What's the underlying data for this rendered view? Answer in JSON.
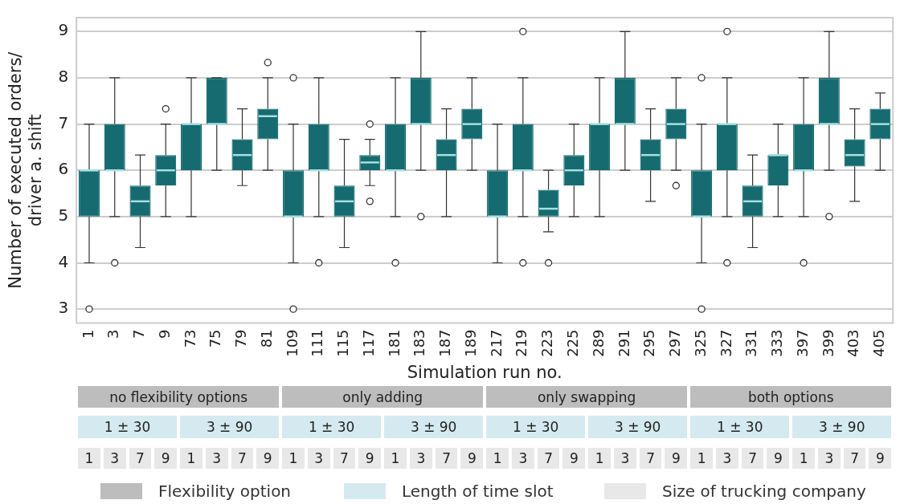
{
  "chart_data": {
    "type": "box",
    "xlabel": "Simulation run no.",
    "ylabel": "Number of executed orders/\ndriver a. shift",
    "categories": [
      "1",
      "3",
      "7",
      "9",
      "73",
      "75",
      "79",
      "81",
      "109",
      "111",
      "115",
      "117",
      "181",
      "183",
      "187",
      "189",
      "217",
      "219",
      "223",
      "225",
      "289",
      "291",
      "295",
      "297",
      "325",
      "327",
      "331",
      "333",
      "397",
      "399",
      "403",
      "405"
    ],
    "color": "#156b6f",
    "ylim": [
      2.7,
      9.3
    ],
    "yticks": [
      3,
      4,
      5,
      6,
      7,
      8,
      9
    ],
    "grid": "y",
    "boxes": [
      {
        "low": 4,
        "q1": 5,
        "median": 6,
        "q3": 6,
        "high": 7,
        "outliers": [
          3
        ]
      },
      {
        "low": 5,
        "q1": 6,
        "median": 6,
        "q3": 7,
        "high": 8,
        "outliers": [
          4
        ]
      },
      {
        "low": 4.33,
        "q1": 5,
        "median": 5.33,
        "q3": 5.67,
        "high": 6.33
      },
      {
        "low": 5,
        "q1": 5.67,
        "median": 6,
        "q3": 6.33,
        "high": 7,
        "outliers": [
          7.33
        ]
      },
      {
        "low": 5,
        "q1": 6,
        "median": 7,
        "q3": 7,
        "high": 8
      },
      {
        "low": 6,
        "q1": 7,
        "median": 7,
        "q3": 8,
        "high": 8
      },
      {
        "low": 5.67,
        "q1": 6,
        "median": 6.33,
        "q3": 6.67,
        "high": 7.33
      },
      {
        "low": 6,
        "q1": 6.67,
        "median": 7.17,
        "q3": 7.33,
        "high": 8,
        "outliers": [
          8.33
        ]
      },
      {
        "low": 4,
        "q1": 5,
        "median": 5,
        "q3": 6,
        "high": 7,
        "outliers": [
          8,
          3
        ]
      },
      {
        "low": 5,
        "q1": 6,
        "median": 6,
        "q3": 7,
        "high": 8,
        "outliers": [
          4
        ]
      },
      {
        "low": 4.33,
        "q1": 5,
        "median": 5.33,
        "q3": 5.67,
        "high": 6.67
      },
      {
        "low": 5.67,
        "q1": 6,
        "median": 6.17,
        "q3": 6.33,
        "high": 6.67,
        "outliers": [
          7,
          5.33
        ]
      },
      {
        "low": 5,
        "q1": 6,
        "median": 6,
        "q3": 7,
        "high": 8,
        "outliers": [
          4
        ]
      },
      {
        "low": 6,
        "q1": 7,
        "median": 7,
        "q3": 8,
        "high": 9,
        "outliers": [
          5
        ]
      },
      {
        "low": 5,
        "q1": 6,
        "median": 6.33,
        "q3": 6.67,
        "high": 7.33
      },
      {
        "low": 6,
        "q1": 6.67,
        "median": 7,
        "q3": 7.33,
        "high": 8
      },
      {
        "low": 4,
        "q1": 5,
        "median": 5,
        "q3": 6,
        "high": 7
      },
      {
        "low": 5,
        "q1": 6,
        "median": 6,
        "q3": 7,
        "high": 8,
        "outliers": [
          9,
          4
        ]
      },
      {
        "low": 4.67,
        "q1": 5,
        "median": 5.17,
        "q3": 5.58,
        "high": 6,
        "outliers": [
          4
        ]
      },
      {
        "low": 5,
        "q1": 5.67,
        "median": 6,
        "q3": 6.33,
        "high": 7
      },
      {
        "low": 5,
        "q1": 6,
        "median": 7,
        "q3": 7,
        "high": 8
      },
      {
        "low": 6,
        "q1": 7,
        "median": 7,
        "q3": 8,
        "high": 9
      },
      {
        "low": 5.33,
        "q1": 6,
        "median": 6.33,
        "q3": 6.67,
        "high": 7.33
      },
      {
        "low": 6,
        "q1": 6.67,
        "median": 7,
        "q3": 7.33,
        "high": 8,
        "outliers": [
          5.67
        ]
      },
      {
        "low": 4,
        "q1": 5,
        "median": 5,
        "q3": 6,
        "high": 7,
        "outliers": [
          8,
          3
        ]
      },
      {
        "low": 5,
        "q1": 6,
        "median": 7,
        "q3": 7,
        "high": 8,
        "outliers": [
          9,
          4
        ]
      },
      {
        "low": 4.33,
        "q1": 5,
        "median": 5.33,
        "q3": 5.67,
        "high": 6.33
      },
      {
        "low": 5,
        "q1": 5.67,
        "median": 6.33,
        "q3": 6.33,
        "high": 7
      },
      {
        "low": 5,
        "q1": 6,
        "median": 6,
        "q3": 7,
        "high": 8,
        "outliers": [
          4
        ]
      },
      {
        "low": 6,
        "q1": 7,
        "median": 7,
        "q3": 8,
        "high": 9,
        "outliers": [
          5
        ]
      },
      {
        "low": 5.33,
        "q1": 6.08,
        "median": 6.33,
        "q3": 6.67,
        "high": 7.33
      },
      {
        "low": 6,
        "q1": 6.67,
        "median": 7,
        "q3": 7.33,
        "high": 7.67
      }
    ],
    "annotations": [
      "no flexibility options",
      "only adding",
      "only swapping",
      "both options",
      "1 ± 30",
      "3 ± 90",
      "1 ± 30",
      "3 ± 90",
      "1 ± 30",
      "3 ± 90",
      "1 ± 30",
      "3 ± 90",
      "1",
      "3",
      "7",
      "9",
      "1",
      "3",
      "7",
      "9",
      "1",
      "3",
      "7",
      "9",
      "1",
      "3",
      "7",
      "9",
      "1",
      "3",
      "7",
      "9",
      "1",
      "3",
      "7",
      "9",
      "1",
      "3",
      "7",
      "9",
      "1",
      "3",
      "7",
      "9",
      "Flexibility option",
      "Length of time slot",
      "Size of trucking company"
    ]
  }
}
